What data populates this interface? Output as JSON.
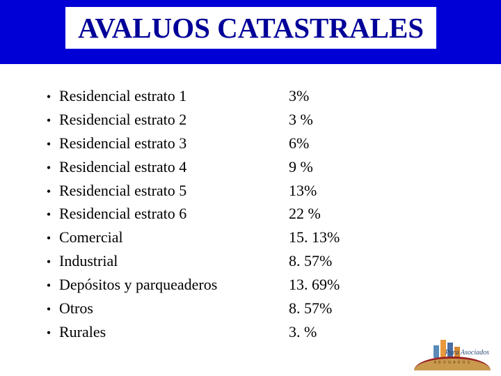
{
  "title": "AVALUOS CATASTRALES",
  "title_color": "#000099",
  "header_bg": "#0000d6",
  "text_color": "#000000",
  "font_family": "Times New Roman",
  "title_fontsize": 41,
  "body_fontsize": 22,
  "rows": [
    {
      "label": " Residencial estrato 1",
      "value": "3%"
    },
    {
      "label": "Residencial estrato 2",
      "value": "3 %"
    },
    {
      "label": "Residencial estrato 3",
      "value": "6%"
    },
    {
      "label": "Residencial estrato 4",
      "value": "9 %"
    },
    {
      "label": "Residencial estrato 5",
      "value": "13%"
    },
    {
      "label": "Residencial estrato 6",
      "value": "22 %"
    },
    {
      "label": "Comercial",
      "value": "15. 13%"
    },
    {
      "label": "Industrial",
      "value": "8. 57%"
    },
    {
      "label": "Depósitos y parqueaderos",
      "value": "13. 69%"
    },
    {
      "label": "Otros",
      "value": "8. 57%"
    },
    {
      "label": "Rurales",
      "value": " 3. %"
    }
  ],
  "logo": {
    "brand": "Para Asociados",
    "subtext": "ABOGADOS",
    "colors": {
      "arc_border": "#992222",
      "arc_fill": "#c9994d",
      "building_blue": "#5a8ab8",
      "building_orange": "#e89a3c",
      "text_blue": "#2a4a7a"
    }
  }
}
